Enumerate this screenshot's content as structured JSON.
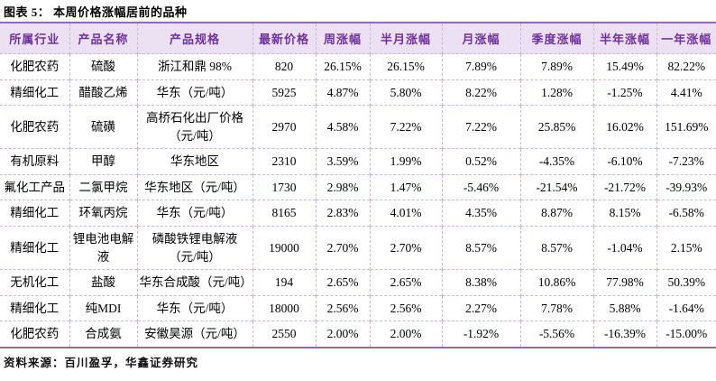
{
  "figure": {
    "title": "图表 5：  本周价格涨幅居前的品种",
    "source": "资料来源：百川盈孚，华鑫证券研究"
  },
  "colors": {
    "header_text": "#7030A0",
    "header_bg": "#EBE1F2",
    "accent_line": "#9966B3",
    "dashed_border": "#C9B7DB",
    "body_text": "#000000"
  },
  "chart_data": {
    "type": "table",
    "columns": [
      "所属行业",
      "产品名称",
      "产品规格",
      "最新价格",
      "周涨幅",
      "半月涨幅",
      "月涨幅",
      "季度涨幅",
      "半年涨幅",
      "一年涨幅"
    ],
    "rows": [
      [
        "化肥农药",
        "硫酸",
        "浙江和鼎 98%",
        "820",
        "26.15%",
        "26.15%",
        "7.89%",
        "7.89%",
        "15.49%",
        "82.22%"
      ],
      [
        "精细化工",
        "醋酸乙烯",
        "华东（元/吨）",
        "5925",
        "4.87%",
        "5.80%",
        "8.22%",
        "1.28%",
        "-1.25%",
        "4.41%"
      ],
      [
        "化肥农药",
        "硫磺",
        "高桥石化出厂价格（元/吨）",
        "2970",
        "4.58%",
        "7.22%",
        "7.22%",
        "25.85%",
        "16.02%",
        "151.69%"
      ],
      [
        "有机原料",
        "甲醇",
        "华东地区",
        "2310",
        "3.59%",
        "1.99%",
        "0.52%",
        "-4.35%",
        "-6.10%",
        "-7.23%"
      ],
      [
        "氟化工产品",
        "二氯甲烷",
        "华东地区（元/吨）",
        "1730",
        "2.98%",
        "1.47%",
        "-5.46%",
        "-21.54%",
        "-21.72%",
        "-39.93%"
      ],
      [
        "精细化工",
        "环氧丙烷",
        "华东（元/吨）",
        "8165",
        "2.83%",
        "4.01%",
        "4.35%",
        "8.87%",
        "8.15%",
        "-6.58%"
      ],
      [
        "精细化工",
        "锂电池电解液",
        "磷酸铁锂电解液（元/吨）",
        "19000",
        "2.70%",
        "2.70%",
        "8.57%",
        "8.57%",
        "-1.04%",
        "2.15%"
      ],
      [
        "无机化工",
        "盐酸",
        "华东合成酸（元/吨）",
        "194",
        "2.65%",
        "2.65%",
        "8.38%",
        "10.86%",
        "77.98%",
        "50.39%"
      ],
      [
        "精细化工",
        "纯MDI",
        "华东（元/吨）",
        "18000",
        "2.56%",
        "2.56%",
        "2.27%",
        "7.78%",
        "5.88%",
        "-1.64%"
      ],
      [
        "化肥农药",
        "合成氨",
        "安徽昊源（元/吨）",
        "2550",
        "2.00%",
        "2.00%",
        "-1.92%",
        "-5.56%",
        "-16.39%",
        "-15.00%"
      ]
    ]
  }
}
